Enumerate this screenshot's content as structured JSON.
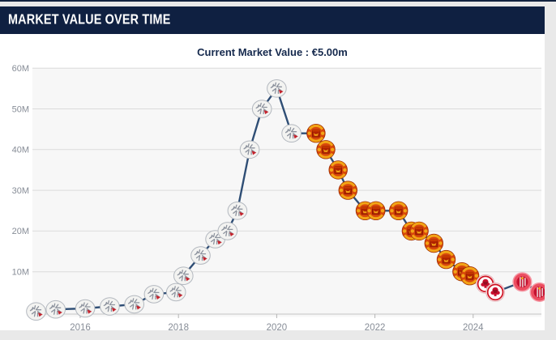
{
  "page": {
    "background_color": "#e9e9e9",
    "top_border_color": "#13233f"
  },
  "card": {
    "background_color": "#ffffff"
  },
  "header": {
    "title": "MARKET VALUE OVER TIME",
    "background_color": "#0f2041",
    "text_color": "#ffffff"
  },
  "summary": {
    "label": "Current Market Value : €5.00m",
    "text_color": "#15294d"
  },
  "chart_data": {
    "type": "line",
    "title": "Market value over time",
    "unit": "EUR (millions)",
    "current_value": "€5.00m",
    "x_axis": {
      "tick_labels": [
        "2016",
        "2018",
        "2020",
        "2022",
        "2024"
      ],
      "tick_values": [
        2016,
        2018,
        2020,
        2022,
        2024
      ],
      "range": [
        2015.0,
        2025.6
      ]
    },
    "y_axis": {
      "tick_labels": [
        "60M",
        "50M",
        "40M",
        "30M",
        "20M",
        "10M"
      ],
      "tick_values": [
        60,
        50,
        40,
        30,
        20,
        10
      ],
      "range": [
        0,
        62
      ]
    },
    "grid": true,
    "legend": false,
    "plot_background": "#f7f7f7",
    "grid_color": "#dcdcdc",
    "baseline_color": "#c6c6c6",
    "axis_label_color": "#878d97",
    "line_color": "#2f4e75",
    "marker_style": "club-crest",
    "series": [
      {
        "name": "Market value",
        "points": [
          {
            "x": 2015.1,
            "value_m": 0.25,
            "club": "ajax"
          },
          {
            "x": 2015.5,
            "value_m": 0.75,
            "club": "ajax"
          },
          {
            "x": 2016.1,
            "value_m": 1.0,
            "club": "ajax"
          },
          {
            "x": 2016.6,
            "value_m": 1.5,
            "club": "ajax"
          },
          {
            "x": 2017.1,
            "value_m": 2.0,
            "club": "ajax"
          },
          {
            "x": 2017.5,
            "value_m": 4.5,
            "club": "ajax"
          },
          {
            "x": 2017.95,
            "value_m": 5.0,
            "club": "ajax"
          },
          {
            "x": 2018.1,
            "value_m": 9.0,
            "club": "ajax"
          },
          {
            "x": 2018.45,
            "value_m": 14.0,
            "club": "ajax"
          },
          {
            "x": 2018.75,
            "value_m": 18.0,
            "club": "ajax"
          },
          {
            "x": 2019.0,
            "value_m": 20.0,
            "club": "ajax"
          },
          {
            "x": 2019.2,
            "value_m": 25.0,
            "club": "ajax"
          },
          {
            "x": 2019.45,
            "value_m": 40.0,
            "club": "ajax"
          },
          {
            "x": 2019.7,
            "value_m": 50.0,
            "club": "ajax"
          },
          {
            "x": 2020.0,
            "value_m": 55.0,
            "club": "ajax"
          },
          {
            "x": 2020.3,
            "value_m": 44.0,
            "club": "ajax"
          },
          {
            "x": 2020.8,
            "value_m": 44.0,
            "club": "manutd"
          },
          {
            "x": 2021.0,
            "value_m": 40.0,
            "club": "manutd"
          },
          {
            "x": 2021.25,
            "value_m": 35.0,
            "club": "manutd"
          },
          {
            "x": 2021.45,
            "value_m": 30.0,
            "club": "manutd"
          },
          {
            "x": 2021.8,
            "value_m": 25.0,
            "club": "manutd"
          },
          {
            "x": 2022.02,
            "value_m": 25.0,
            "club": "manutd"
          },
          {
            "x": 2022.48,
            "value_m": 25.0,
            "club": "manutd"
          },
          {
            "x": 2022.74,
            "value_m": 20.0,
            "club": "manutd"
          },
          {
            "x": 2022.9,
            "value_m": 20.0,
            "club": "manutd"
          },
          {
            "x": 2023.2,
            "value_m": 17.0,
            "club": "manutd"
          },
          {
            "x": 2023.45,
            "value_m": 13.0,
            "club": "manutd"
          },
          {
            "x": 2023.77,
            "value_m": 10.0,
            "club": "manutd"
          },
          {
            "x": 2023.93,
            "value_m": 9.0,
            "club": "manutd"
          },
          {
            "x": 2024.25,
            "value_m": 7.0,
            "club": "frankfurt"
          },
          {
            "x": 2024.45,
            "value_m": 5.0,
            "club": "frankfurt"
          },
          {
            "x": 2025.0,
            "value_m": 7.5,
            "club": "girona"
          },
          {
            "x": 2025.35,
            "value_m": 5.0,
            "club": "girona"
          }
        ]
      }
    ],
    "marker_icons": [
      {
        "id": "ajax",
        "icon_name": "ajax-crest-icon",
        "primary": "#f3f3f1",
        "accent": "#c4232d",
        "detail": "#8d939e"
      },
      {
        "id": "manutd",
        "icon_name": "manchester-united-crest-icon",
        "primary": "#d8470b",
        "accent": "#f2a516",
        "detail": "#b02200"
      },
      {
        "id": "frankfurt",
        "icon_name": "eintracht-frankfurt-crest-icon",
        "primary": "#ffffff",
        "accent": "#cf1020",
        "detail": "#5c0a14"
      },
      {
        "id": "girona",
        "icon_name": "girona-crest-icon",
        "primary": "#ec4d60",
        "accent": "#c41230",
        "detail": "#f3f3f3"
      }
    ]
  }
}
